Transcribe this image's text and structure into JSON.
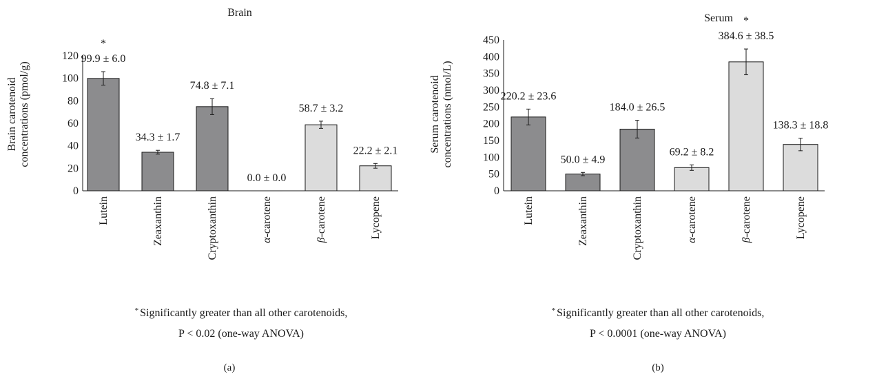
{
  "colors": {
    "dark_bar": "#8c8c8e",
    "light_bar": "#dcdcdc",
    "stroke": "#1a1a1a"
  },
  "chart_data": [
    {
      "type": "bar",
      "panel": "(a)",
      "title": "Brain",
      "ylabel": "Brain carotenoid concentrations (pmol/g)",
      "ylim": [
        0,
        120
      ],
      "yticks": [
        0,
        20,
        40,
        60,
        80,
        100,
        120
      ],
      "categories": [
        "Lutein",
        "Zeaxanthin",
        "Cryptoxanthin",
        "α-carotene",
        "β-carotene",
        "Lycopene"
      ],
      "values": [
        99.9,
        34.3,
        74.8,
        0.0,
        58.7,
        22.2
      ],
      "errors": [
        6.0,
        1.7,
        7.1,
        0.0,
        3.2,
        2.1
      ],
      "data_labels": [
        "99.9 ± 6.0",
        "34.3 ± 1.7",
        "74.8 ± 7.1",
        "0.0 ± 0.0",
        "58.7 ± 3.2",
        "22.2 ± 2.1"
      ],
      "bar_shade": [
        "dark",
        "dark",
        "dark",
        "light",
        "light",
        "light"
      ],
      "significant_index": 0,
      "significance_marker": "*",
      "note_line1": "Significantly greater than all other carotenoids,",
      "note_line2": "P < 0.02 (one-way ANOVA)",
      "grid": false
    },
    {
      "type": "bar",
      "panel": "(b)",
      "title": "Serum",
      "ylabel": "Serum carotenoid concentrations (nmol/L)",
      "ylim": [
        0,
        450
      ],
      "yticks": [
        0,
        50,
        100,
        150,
        200,
        250,
        300,
        350,
        400,
        450
      ],
      "categories": [
        "Lutein",
        "Zeaxanthin",
        "Cryptoxanthin",
        "α-carotene",
        "β-carotene",
        "Lycopene"
      ],
      "values": [
        220.2,
        50.0,
        184.0,
        69.2,
        384.6,
        138.3
      ],
      "errors": [
        23.6,
        4.9,
        26.5,
        8.2,
        38.5,
        18.8
      ],
      "data_labels": [
        "220.2 ± 23.6",
        "50.0 ± 4.9",
        "184.0 ± 26.5",
        "69.2 ± 8.2",
        "384.6 ± 38.5",
        "138.3 ± 18.8"
      ],
      "bar_shade": [
        "dark",
        "dark",
        "dark",
        "light",
        "light",
        "light"
      ],
      "significant_index": 4,
      "significance_marker": "*",
      "note_line1": "Significantly greater than all other carotenoids,",
      "note_line2": "P < 0.0001 (one-way ANOVA)",
      "grid": false
    }
  ]
}
